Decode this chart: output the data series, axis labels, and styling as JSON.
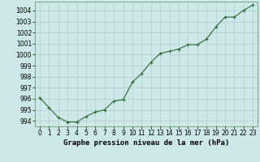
{
  "x": [
    0,
    1,
    2,
    3,
    4,
    5,
    6,
    7,
    8,
    9,
    10,
    11,
    12,
    13,
    14,
    15,
    16,
    17,
    18,
    19,
    20,
    21,
    22,
    23
  ],
  "y": [
    996.1,
    995.2,
    994.3,
    993.9,
    993.9,
    994.4,
    994.8,
    995.0,
    995.8,
    995.9,
    997.5,
    998.3,
    999.3,
    1000.1,
    1000.3,
    1000.5,
    1000.9,
    1000.9,
    1001.4,
    1002.5,
    1003.4,
    1003.4,
    1004.0,
    1004.5
  ],
  "ylim": [
    993.5,
    1004.8
  ],
  "yticks": [
    994,
    995,
    996,
    997,
    998,
    999,
    1000,
    1001,
    1002,
    1003,
    1004
  ],
  "xlim": [
    -0.5,
    23.5
  ],
  "xticks": [
    0,
    1,
    2,
    3,
    4,
    5,
    6,
    7,
    8,
    9,
    10,
    11,
    12,
    13,
    14,
    15,
    16,
    17,
    18,
    19,
    20,
    21,
    22,
    23
  ],
  "xlabel": "Graphe pression niveau de la mer (hPa)",
  "line_color": "#2d6a2d",
  "marker": "+",
  "marker_color": "#2d6a2d",
  "bg_color": "#cce8e8",
  "grid_color": "#b0cccc",
  "tick_fontsize": 5.5,
  "xlabel_fontsize": 6.5,
  "linewidth": 0.8,
  "markersize": 3.5
}
